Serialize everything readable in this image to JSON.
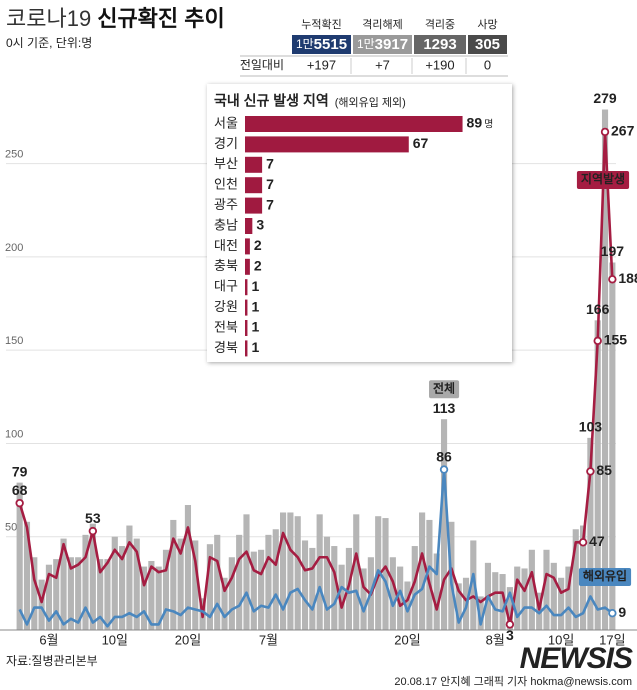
{
  "header": {
    "title_light": "코로나19",
    "title_bold": "신규확진 추이",
    "subtitle": "0시 기준, 단위:명"
  },
  "stats": {
    "change_label": "전일대비",
    "columns": [
      {
        "label": "누적확진",
        "total_prefix": "1만",
        "total": "5515",
        "change": "+197",
        "color": "#1f3b70",
        "change_color": "#b01c3c"
      },
      {
        "label": "격리해제",
        "total_prefix": "1만",
        "total": "3917",
        "change": "+7",
        "color": "#9a9a9a",
        "change_color": "#333333"
      },
      {
        "label": "격리중",
        "total": "1293",
        "change": "+190",
        "color": "#666666",
        "change_color": "#333333"
      },
      {
        "label": "사망",
        "total": "305",
        "change": "0",
        "color": "#4a4a4a",
        "change_color": "#333333"
      }
    ]
  },
  "chart_data": [
    {
      "type": "bar_line",
      "categories": [
        null,
        null,
        null,
        null,
        "6월",
        null,
        null,
        null,
        null,
        null,
        null,
        null,
        null,
        "10일",
        null,
        null,
        null,
        null,
        null,
        null,
        null,
        null,
        null,
        "20일",
        null,
        null,
        null,
        null,
        null,
        null,
        null,
        null,
        null,
        null,
        "7월",
        null,
        null,
        null,
        null,
        null,
        null,
        null,
        null,
        null,
        null,
        null,
        null,
        null,
        null,
        null,
        null,
        null,
        null,
        "20일",
        null,
        null,
        null,
        null,
        null,
        null,
        null,
        null,
        null,
        null,
        null,
        "8월",
        null,
        null,
        null,
        null,
        null,
        null,
        null,
        null,
        "10일",
        null,
        null,
        null,
        null,
        null,
        null,
        "17일"
      ],
      "ylim": [
        0,
        290
      ],
      "yticks": [
        50,
        100,
        150,
        200,
        250
      ],
      "grid": true,
      "series": [
        {
          "name": "전체",
          "type": "bar",
          "color": "#b5b5b5",
          "labels_at": [
            0,
            58,
            78,
            79,
            80,
            81
          ],
          "values": [
            79,
            58,
            39,
            27,
            35,
            38,
            49,
            39,
            39,
            51,
            57,
            38,
            38,
            50,
            45,
            56,
            49,
            34,
            37,
            34,
            43,
            59,
            49,
            67,
            48,
            17,
            46,
            51,
            28,
            39,
            51,
            62,
            42,
            43,
            51,
            54,
            63,
            63,
            61,
            48,
            44,
            62,
            50,
            45,
            35,
            44,
            62,
            33,
            39,
            61,
            60,
            39,
            34,
            26,
            45,
            63,
            59,
            41,
            113,
            58,
            25,
            28,
            48,
            18,
            36,
            31,
            30,
            23,
            34,
            33,
            43,
            20,
            43,
            36,
            28,
            34,
            54,
            56,
            103,
            166,
            279,
            197
          ]
        },
        {
          "name": "지역발생",
          "type": "line",
          "color": "#a51d42",
          "labels_at": [
            0,
            10,
            67,
            77,
            78,
            79,
            80,
            81
          ],
          "values": [
            68,
            55,
            27,
            15,
            30,
            28,
            46,
            33,
            35,
            39,
            53,
            31,
            36,
            43,
            38,
            47,
            42,
            24,
            34,
            31,
            32,
            49,
            41,
            55,
            37,
            7,
            39,
            37,
            21,
            28,
            38,
            42,
            32,
            30,
            39,
            35,
            52,
            43,
            39,
            32,
            33,
            39,
            39,
            31,
            12,
            24,
            41,
            23,
            19,
            29,
            34,
            26,
            13,
            16,
            26,
            41,
            25,
            11,
            27,
            33,
            21,
            16,
            18,
            15,
            18,
            20,
            20,
            3,
            27,
            21,
            31,
            11,
            30,
            28,
            20,
            22,
            47,
            47,
            85,
            155,
            267,
            188
          ]
        },
        {
          "name": "해외유입",
          "type": "line",
          "color": "#4a87bf",
          "labels_at": [
            58,
            81
          ],
          "values": [
            11,
            3,
            12,
            12,
            5,
            10,
            3,
            6,
            4,
            12,
            4,
            7,
            2,
            7,
            7,
            9,
            7,
            10,
            3,
            3,
            11,
            10,
            8,
            12,
            11,
            10,
            7,
            14,
            7,
            11,
            13,
            20,
            10,
            13,
            12,
            19,
            11,
            20,
            22,
            16,
            11,
            23,
            11,
            14,
            23,
            20,
            21,
            10,
            20,
            32,
            26,
            13,
            21,
            10,
            19,
            22,
            34,
            30,
            86,
            25,
            4,
            12,
            30,
            3,
            18,
            11,
            10,
            20,
            7,
            12,
            12,
            9,
            13,
            8,
            8,
            12,
            7,
            9,
            18,
            11,
            12,
            9
          ]
        }
      ]
    },
    {
      "type": "hbar",
      "title": "국내 신규 발생 지역",
      "subtitle": "(해외유입 제외)",
      "unit": "명",
      "color": "#a01a40",
      "xlim": [
        0,
        90
      ],
      "categories": [
        "서울",
        "경기",
        "부산",
        "인천",
        "광주",
        "충남",
        "대전",
        "충북",
        "대구",
        "강원",
        "전북",
        "경북"
      ],
      "values": [
        89,
        67,
        7,
        7,
        7,
        3,
        2,
        2,
        1,
        1,
        1,
        1
      ]
    }
  ],
  "footer": {
    "source": "자료:질병관리본부",
    "credit": "20.08.17 안지혜 그래픽 기자 hokma@newsis.com",
    "logo": "NEWSIS"
  }
}
